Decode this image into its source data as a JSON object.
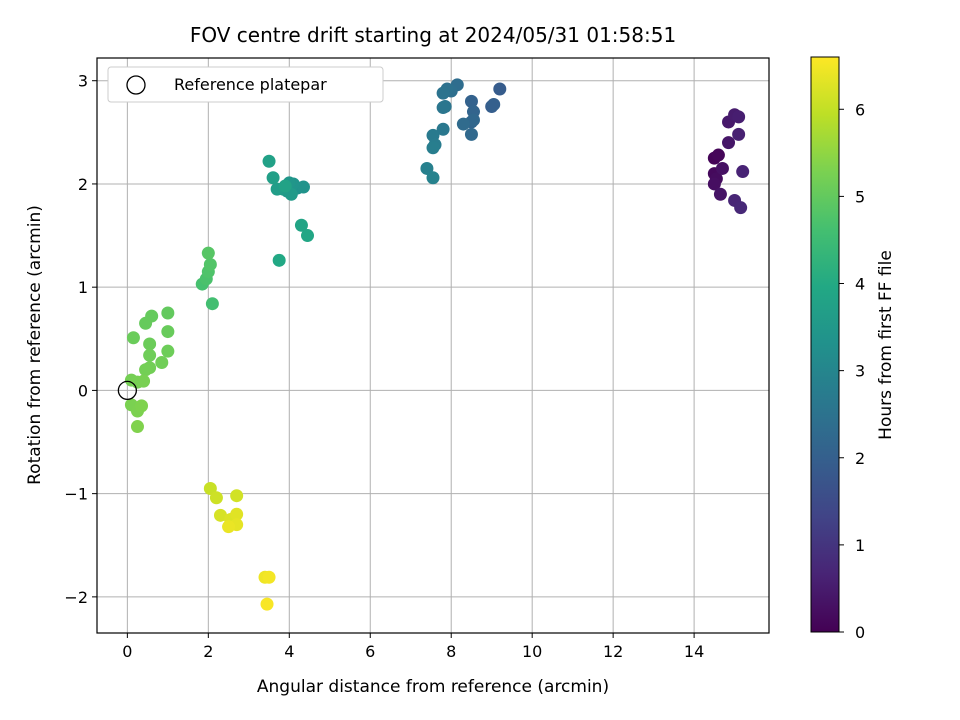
{
  "chart_data": {
    "type": "scatter",
    "title": "FOV centre drift starting at 2024/05/31 01:58:51",
    "xlabel": "Angular distance from reference (arcmin)",
    "ylabel": "Rotation from reference (arcmin)",
    "xlim": [
      -0.75,
      15.85
    ],
    "ylim": [
      -2.35,
      3.22
    ],
    "xticks": [
      0,
      2,
      4,
      6,
      8,
      10,
      12,
      14
    ],
    "yticks": [
      -2,
      -1,
      0,
      1,
      2,
      3
    ],
    "xtick_labels": [
      "0",
      "2",
      "4",
      "6",
      "8",
      "10",
      "12",
      "14"
    ],
    "ytick_labels": [
      "−2",
      "−1",
      "0",
      "1",
      "2",
      "3"
    ],
    "grid": true,
    "legend": {
      "position": "top-left",
      "entries": [
        "Reference platepar"
      ]
    },
    "reference_point": {
      "x": 0,
      "y": 0
    },
    "colorbar": {
      "label": "Hours from first FF file",
      "range": [
        0,
        6.6
      ],
      "ticks": [
        0,
        1,
        2,
        3,
        4,
        5,
        6
      ],
      "tick_labels": [
        "0",
        "1",
        "2",
        "3",
        "4",
        "5",
        "6"
      ],
      "colormap": "viridis"
    },
    "points": [
      {
        "x": 14.5,
        "y": 2.25,
        "t": 0.05
      },
      {
        "x": 14.6,
        "y": 2.28,
        "t": 0.1
      },
      {
        "x": 14.5,
        "y": 2.1,
        "t": 0.15
      },
      {
        "x": 14.55,
        "y": 2.05,
        "t": 0.2
      },
      {
        "x": 14.5,
        "y": 2.0,
        "t": 0.25
      },
      {
        "x": 14.7,
        "y": 2.15,
        "t": 0.3
      },
      {
        "x": 14.65,
        "y": 1.9,
        "t": 0.35
      },
      {
        "x": 14.85,
        "y": 2.4,
        "t": 0.4
      },
      {
        "x": 14.85,
        "y": 2.6,
        "t": 0.45
      },
      {
        "x": 15.0,
        "y": 2.67,
        "t": 0.5
      },
      {
        "x": 15.1,
        "y": 2.65,
        "t": 0.55
      },
      {
        "x": 15.1,
        "y": 2.48,
        "t": 0.6
      },
      {
        "x": 15.2,
        "y": 2.12,
        "t": 0.65
      },
      {
        "x": 15.0,
        "y": 1.84,
        "t": 0.7
      },
      {
        "x": 15.15,
        "y": 1.77,
        "t": 0.75
      },
      {
        "x": 9.2,
        "y": 2.92,
        "t": 1.9
      },
      {
        "x": 9.0,
        "y": 2.75,
        "t": 1.95
      },
      {
        "x": 9.05,
        "y": 2.77,
        "t": 2.0
      },
      {
        "x": 8.5,
        "y": 2.8,
        "t": 2.05
      },
      {
        "x": 8.55,
        "y": 2.7,
        "t": 2.1
      },
      {
        "x": 8.5,
        "y": 2.6,
        "t": 2.15
      },
      {
        "x": 8.55,
        "y": 2.62,
        "t": 2.2
      },
      {
        "x": 8.5,
        "y": 2.48,
        "t": 2.25
      },
      {
        "x": 8.3,
        "y": 2.58,
        "t": 2.3
      },
      {
        "x": 8.15,
        "y": 2.96,
        "t": 2.35
      },
      {
        "x": 8.0,
        "y": 2.9,
        "t": 2.4
      },
      {
        "x": 7.9,
        "y": 2.92,
        "t": 2.45
      },
      {
        "x": 7.8,
        "y": 2.88,
        "t": 2.5
      },
      {
        "x": 7.85,
        "y": 2.75,
        "t": 2.55
      },
      {
        "x": 7.8,
        "y": 2.74,
        "t": 2.6
      },
      {
        "x": 7.8,
        "y": 2.53,
        "t": 2.65
      },
      {
        "x": 7.55,
        "y": 2.47,
        "t": 2.7
      },
      {
        "x": 7.6,
        "y": 2.38,
        "t": 2.75
      },
      {
        "x": 7.55,
        "y": 2.35,
        "t": 2.8
      },
      {
        "x": 7.4,
        "y": 2.15,
        "t": 2.85
      },
      {
        "x": 7.55,
        "y": 2.06,
        "t": 2.9
      },
      {
        "x": 4.2,
        "y": 1.96,
        "t": 3.3
      },
      {
        "x": 4.35,
        "y": 1.97,
        "t": 3.35
      },
      {
        "x": 4.1,
        "y": 2.0,
        "t": 3.4
      },
      {
        "x": 4.0,
        "y": 2.01,
        "t": 3.45
      },
      {
        "x": 3.95,
        "y": 1.93,
        "t": 3.5
      },
      {
        "x": 4.05,
        "y": 1.9,
        "t": 3.55
      },
      {
        "x": 3.85,
        "y": 1.95,
        "t": 3.6
      },
      {
        "x": 3.7,
        "y": 1.95,
        "t": 3.65
      },
      {
        "x": 3.6,
        "y": 2.06,
        "t": 3.7
      },
      {
        "x": 3.5,
        "y": 2.22,
        "t": 3.75
      },
      {
        "x": 3.9,
        "y": 1.98,
        "t": 3.8
      },
      {
        "x": 4.3,
        "y": 1.6,
        "t": 3.85
      },
      {
        "x": 4.45,
        "y": 1.5,
        "t": 3.9
      },
      {
        "x": 3.75,
        "y": 1.26,
        "t": 3.95
      },
      {
        "x": 2.1,
        "y": 0.84,
        "t": 4.6
      },
      {
        "x": 1.85,
        "y": 1.03,
        "t": 4.65
      },
      {
        "x": 1.95,
        "y": 1.08,
        "t": 4.7
      },
      {
        "x": 2.0,
        "y": 1.15,
        "t": 4.75
      },
      {
        "x": 2.05,
        "y": 1.22,
        "t": 4.8
      },
      {
        "x": 2.0,
        "y": 1.33,
        "t": 4.85
      },
      {
        "x": 1.0,
        "y": 0.75,
        "t": 5.0
      },
      {
        "x": 0.6,
        "y": 0.72,
        "t": 5.02
      },
      {
        "x": 0.45,
        "y": 0.65,
        "t": 5.04
      },
      {
        "x": 1.0,
        "y": 0.57,
        "t": 5.06
      },
      {
        "x": 0.15,
        "y": 0.51,
        "t": 5.08
      },
      {
        "x": 0.55,
        "y": 0.45,
        "t": 5.1
      },
      {
        "x": 1.0,
        "y": 0.38,
        "t": 5.12
      },
      {
        "x": 0.55,
        "y": 0.34,
        "t": 5.14
      },
      {
        "x": 0.85,
        "y": 0.27,
        "t": 5.16
      },
      {
        "x": 0.55,
        "y": 0.22,
        "t": 5.18
      },
      {
        "x": 0.45,
        "y": 0.2,
        "t": 5.2
      },
      {
        "x": 0.1,
        "y": 0.1,
        "t": 5.22
      },
      {
        "x": 0.25,
        "y": 0.08,
        "t": 5.24
      },
      {
        "x": 0.4,
        "y": 0.09,
        "t": 5.26
      },
      {
        "x": 0.1,
        "y": -0.14,
        "t": 5.28
      },
      {
        "x": 0.25,
        "y": -0.2,
        "t": 5.3
      },
      {
        "x": 0.35,
        "y": -0.15,
        "t": 5.32
      },
      {
        "x": 0.25,
        "y": -0.35,
        "t": 5.34
      },
      {
        "x": 2.05,
        "y": -0.95,
        "t": 6.05
      },
      {
        "x": 2.2,
        "y": -1.04,
        "t": 6.1
      },
      {
        "x": 2.7,
        "y": -1.02,
        "t": 6.15
      },
      {
        "x": 2.3,
        "y": -1.21,
        "t": 6.2
      },
      {
        "x": 2.55,
        "y": -1.25,
        "t": 6.25
      },
      {
        "x": 2.7,
        "y": -1.2,
        "t": 6.3
      },
      {
        "x": 2.7,
        "y": -1.3,
        "t": 6.35
      },
      {
        "x": 2.5,
        "y": -1.32,
        "t": 6.4
      },
      {
        "x": 3.4,
        "y": -1.81,
        "t": 6.45
      },
      {
        "x": 3.5,
        "y": -1.81,
        "t": 6.5
      },
      {
        "x": 3.45,
        "y": -2.07,
        "t": 6.55
      }
    ]
  }
}
